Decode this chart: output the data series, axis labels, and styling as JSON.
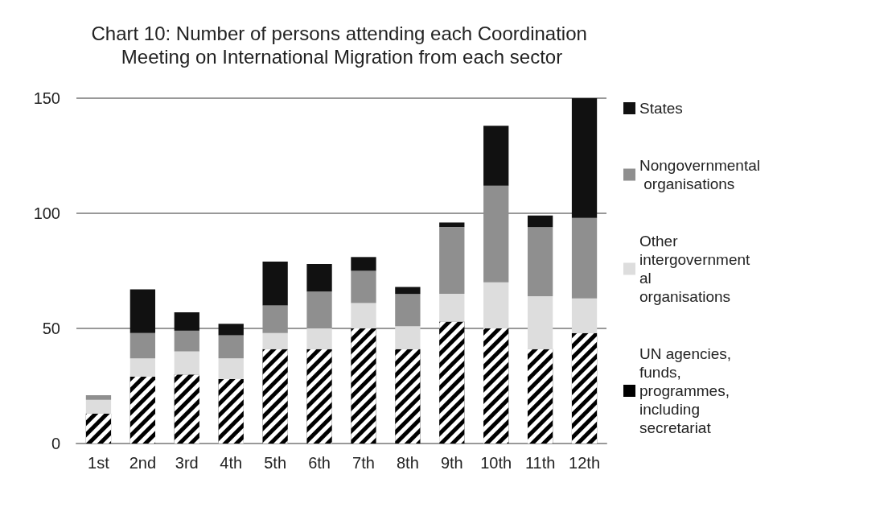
{
  "chart_data": {
    "type": "bar",
    "title": "Chart 10: Number of persons attending each Coordination Meeting on International Migration from each sector",
    "categories": [
      "1st",
      "2nd",
      "3rd",
      "4th",
      "5th",
      "6th",
      "7th",
      "8th",
      "9th",
      "10th",
      "11th",
      "12th"
    ],
    "stacked": true,
    "ylim": [
      0,
      150
    ],
    "yticks": [
      0,
      50,
      100,
      150
    ],
    "grid": "y",
    "legend": "right",
    "series": [
      {
        "name": "UN agencies, funds, programmes, including secretariat",
        "color": "#000000",
        "values": [
          13,
          29,
          30,
          28,
          41,
          41,
          50,
          41,
          53,
          50,
          41,
          48
        ]
      },
      {
        "name": "Other intergovernmental organisations",
        "color": "#dddddd",
        "values": [
          6,
          8,
          10,
          9,
          7,
          9,
          11,
          10,
          12,
          20,
          23,
          15
        ]
      },
      {
        "name": "Nongovernmental organisations",
        "color": "#8f8f8f",
        "values": [
          2,
          11,
          9,
          10,
          12,
          16,
          14,
          14,
          29,
          42,
          30,
          35
        ]
      },
      {
        "name": "States",
        "color": "#111111",
        "values": [
          0,
          19,
          8,
          5,
          19,
          12,
          6,
          3,
          2,
          26,
          5,
          52
        ]
      }
    ]
  }
}
